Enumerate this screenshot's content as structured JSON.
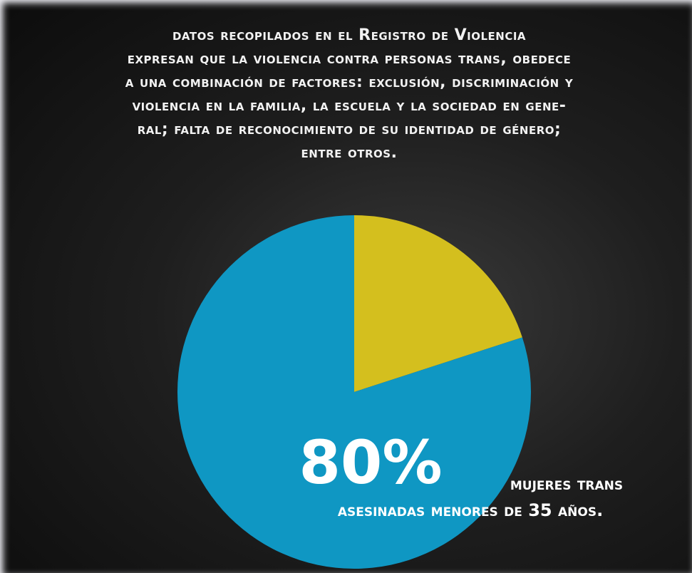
{
  "chart_data": {
    "type": "pie",
    "title": [
      "datos recopilados en el Registro de Violencia",
      "expresan que la violencia contra personas trans, obedece",
      "a una combinación de factores: exclusión, discriminación y",
      "violencia en la familia, la escuela y la sociedad en gene-",
      "ral; falta de reconocimiento de su identidad de género;",
      "entre otros."
    ],
    "series": [
      {
        "values": [
          20,
          80
        ],
        "colors": [
          "#d4bf1e",
          "#0f97c3"
        ],
        "value_labels": [
          null,
          "80%"
        ]
      }
    ],
    "annotation": [
      "mujeres trans",
      "asesinadas menores de 35 años."
    ]
  }
}
